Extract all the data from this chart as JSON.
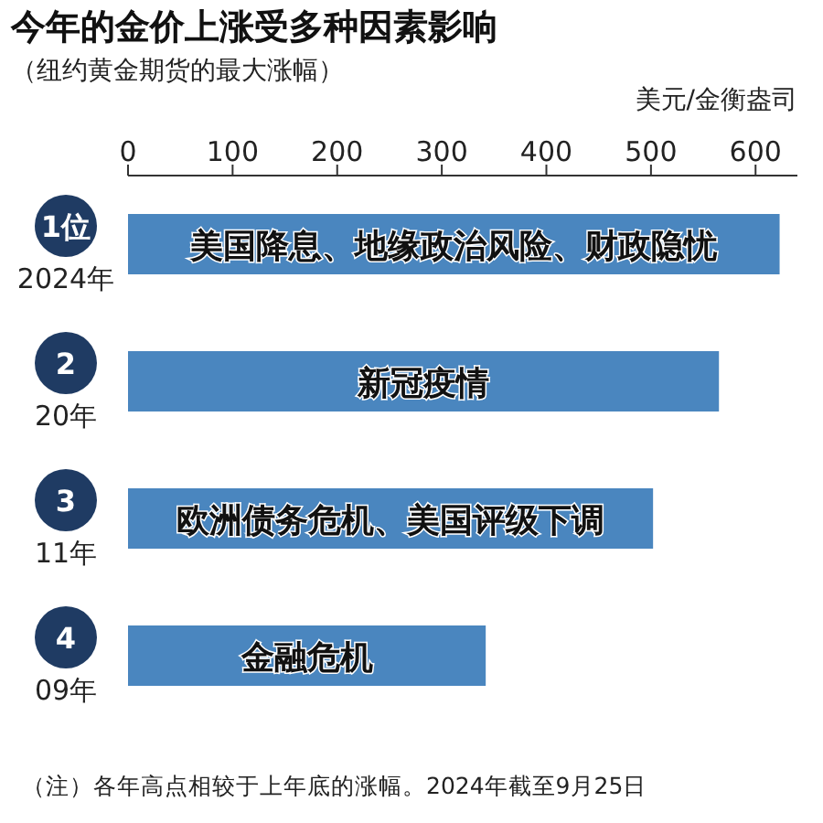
{
  "chart_data": {
    "type": "bar",
    "orientation": "horizontal",
    "title": "今年的金价上涨受多种因素影响",
    "subtitle": "（纽约黄金期货的最大涨幅）",
    "xlabel": "美元/金衡盎司",
    "categories": [
      "1位 2024年",
      "2 20年",
      "3 11年",
      "4 09年"
    ],
    "values": [
      623,
      565,
      502,
      342
    ],
    "color": "#4a86bf",
    "xlim": [
      0,
      640
    ],
    "xticks": [
      0,
      100,
      200,
      300,
      400,
      500,
      600
    ],
    "grid": false,
    "value_labels": [
      "美国降息、地缘政治风险、财政隐忧",
      "新冠疫情",
      "欧洲债务危机、美国评级下调",
      "金融危机"
    ],
    "annotations": [
      "（注）各年高点相较于上年底的涨幅。2024年截至9月25日"
    ]
  }
}
